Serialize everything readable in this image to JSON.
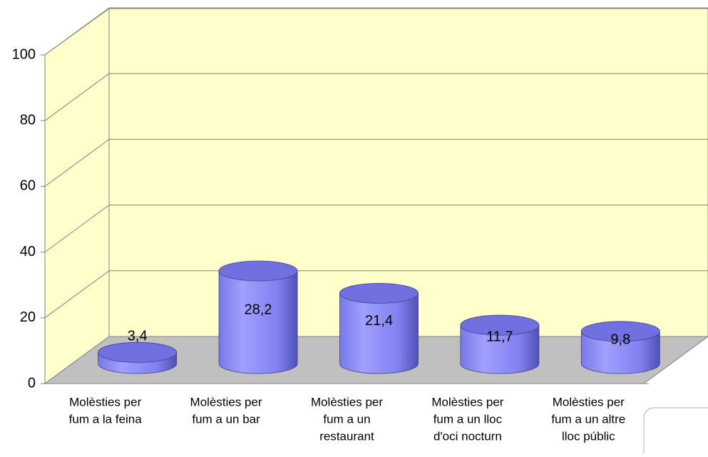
{
  "chart_data": {
    "type": "bar3d",
    "categories": [
      [
        "Molèsties per",
        "fum a la feina"
      ],
      [
        "Molèsties per",
        "fum a un bar"
      ],
      [
        "Molèsties per",
        "fum a un",
        "restaurant"
      ],
      [
        "Molèsties per",
        "fum a un lloc",
        "d'oci nocturn"
      ],
      [
        "Molèsties per",
        "fum a un altre",
        "lloc públic"
      ]
    ],
    "values": [
      3.4,
      28.2,
      21.4,
      11.7,
      9.8
    ],
    "value_labels": [
      "3,4",
      "28,2",
      "21,4",
      "11,7",
      "9,8"
    ],
    "color": "#8c8cff",
    "ylim": [
      0,
      100
    ],
    "yticks": [
      0,
      20,
      40,
      60,
      80,
      100
    ],
    "grid": true
  }
}
